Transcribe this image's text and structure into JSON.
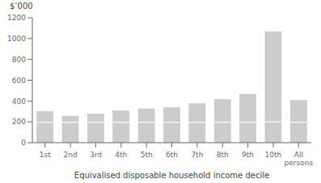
{
  "chart_data": {
    "type": "bar",
    "categories": [
      "1st",
      "2nd",
      "3rd",
      "4th",
      "5th",
      "6th",
      "7th",
      "8th",
      "9th",
      "10th",
      "All\npersons"
    ],
    "values": [
      300,
      255,
      275,
      305,
      325,
      335,
      375,
      415,
      465,
      1065,
      405
    ],
    "divider_values": [
      195,
      195,
      195,
      195,
      195,
      195,
      195,
      195,
      195,
      200,
      195
    ],
    "color": "#cccccc",
    "xlabel": "Equivalised disposable household income decile",
    "ylabel": "$’000",
    "ylim": [
      0,
      1200
    ],
    "yticks": [
      0,
      200,
      400,
      600,
      800,
      1000,
      1200
    ],
    "grid": false
  }
}
